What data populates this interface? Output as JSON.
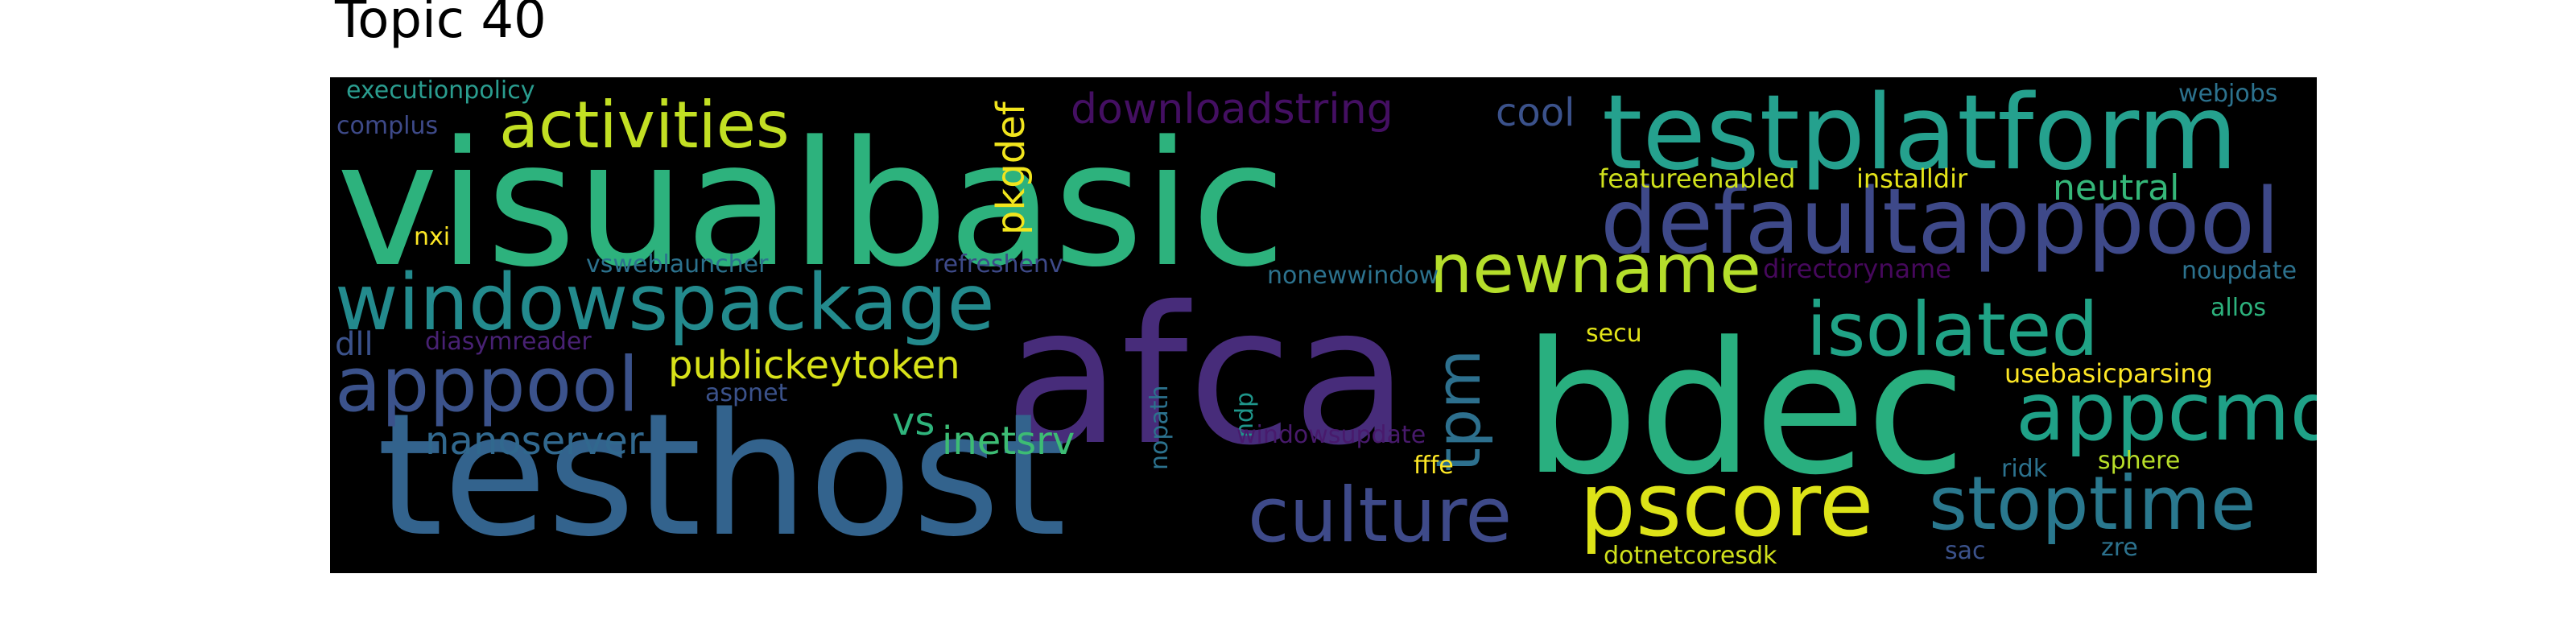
{
  "title": "Topic 40",
  "words": [
    {
      "text": "visualbasic",
      "color": "#2db27d"
    },
    {
      "text": "afca",
      "color": "#472c7a"
    },
    {
      "text": "testhost",
      "color": "#33638d"
    },
    {
      "text": "bdec",
      "color": "#29af7f"
    },
    {
      "text": "testplatform",
      "color": "#25a18e"
    },
    {
      "text": "defaultapppool",
      "color": "#3e4989"
    },
    {
      "text": "windowspackage",
      "color": "#238a8d"
    },
    {
      "text": "newname",
      "color": "#b5de2b"
    },
    {
      "text": "pscore",
      "color": "#dde318"
    },
    {
      "text": "culture",
      "color": "#3e4a89"
    },
    {
      "text": "stoptime",
      "color": "#2a788e"
    },
    {
      "text": "apppool",
      "color": "#3b528b"
    },
    {
      "text": "isolated",
      "color": "#20a386"
    },
    {
      "text": "appcmd",
      "color": "#1fa187"
    },
    {
      "text": "activities",
      "color": "#c2df23"
    },
    {
      "text": "tpm",
      "color": "#2d708e"
    },
    {
      "text": "publickeytoken",
      "color": "#d8e219"
    },
    {
      "text": "downloadstring",
      "color": "#440f62"
    },
    {
      "text": "inetsrv",
      "color": "#3dbc74"
    },
    {
      "text": "nanoserver",
      "color": "#31688e"
    },
    {
      "text": "pkgdef",
      "color": "#f1e51d"
    },
    {
      "text": "neutral",
      "color": "#35b779"
    },
    {
      "text": "cool",
      "color": "#3b528b"
    },
    {
      "text": "vs",
      "color": "#2fb47c"
    },
    {
      "text": "usebasicparsing",
      "color": "#fde725"
    },
    {
      "text": "executionpolicy",
      "color": "#2a9d8f"
    },
    {
      "text": "complus",
      "color": "#3e4a89"
    },
    {
      "text": "webjobs",
      "color": "#2c728e"
    },
    {
      "text": "featureenabled",
      "color": "#d0e11c"
    },
    {
      "text": "installdir",
      "color": "#e5e419"
    },
    {
      "text": "nxi",
      "color": "#fde725"
    },
    {
      "text": "vsweblauncher",
      "color": "#2c728e"
    },
    {
      "text": "refreshenv",
      "color": "#3e4a89"
    },
    {
      "text": "nonewwindow",
      "color": "#2c728e"
    },
    {
      "text": "directoryname",
      "color": "#46085c"
    },
    {
      "text": "noupdate",
      "color": "#2c728e"
    },
    {
      "text": "allos",
      "color": "#2db27d"
    },
    {
      "text": "dll",
      "color": "#3b528b"
    },
    {
      "text": "diasymreader",
      "color": "#482173"
    },
    {
      "text": "secu",
      "color": "#e2e418"
    },
    {
      "text": "aspnet",
      "color": "#3b528b"
    },
    {
      "text": "ndp",
      "color": "#1f968b"
    },
    {
      "text": "nopath",
      "color": "#2c728e"
    },
    {
      "text": "windowsupdate",
      "color": "#481a6c"
    },
    {
      "text": "fffe",
      "color": "#fde725"
    },
    {
      "text": "ridk",
      "color": "#2c728e"
    },
    {
      "text": "sphere",
      "color": "#b8de29"
    },
    {
      "text": "dotnetcoresdk",
      "color": "#d0e11c"
    },
    {
      "text": "sac",
      "color": "#3b528b"
    },
    {
      "text": "zre",
      "color": "#2c728e"
    }
  ]
}
